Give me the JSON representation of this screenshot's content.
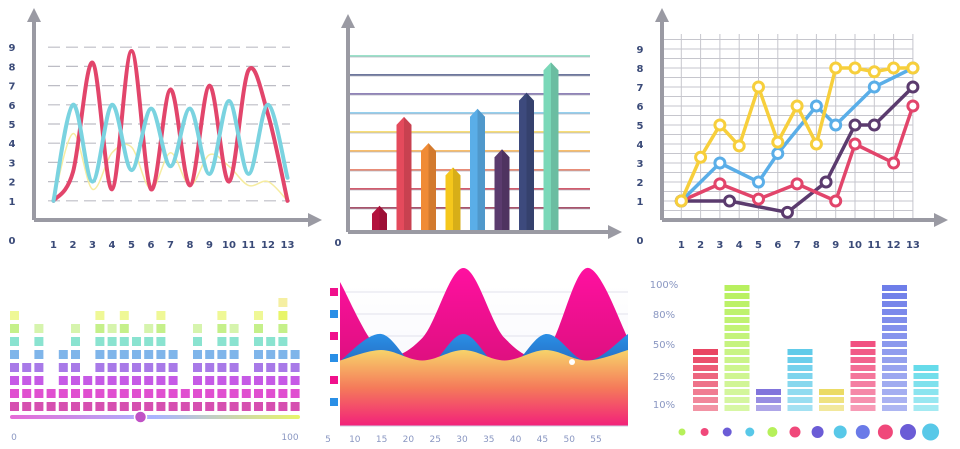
{
  "colors": {
    "axis": "#9a9aa3",
    "grid": "#bdbdc5",
    "red": "#e2456b",
    "teal": "#7ad3e0",
    "cream": "#f6eca0",
    "yellow": "#f7cf3c",
    "blue": "#5aaee8",
    "purple": "#5b3b6e",
    "pink": "#e8497a"
  },
  "chart_data": [
    {
      "type": "line",
      "x_ticks": [
        "1",
        "2",
        "3",
        "4",
        "5",
        "6",
        "7",
        "8",
        "9",
        "10",
        "11",
        "12",
        "13"
      ],
      "y_ticks": [
        "1",
        "2",
        "3",
        "4",
        "5",
        "6",
        "7",
        "8",
        "9"
      ],
      "origin_label": "0",
      "xlim": [
        0,
        13
      ],
      "ylim": [
        0,
        9.5
      ],
      "series": [
        {
          "color": "red",
          "x": [
            1,
            2,
            3,
            4,
            5,
            6,
            7,
            8,
            9,
            10,
            11,
            12,
            13
          ],
          "y": [
            1,
            2.5,
            8.2,
            1.6,
            8.8,
            1.6,
            6.8,
            1.8,
            7,
            2,
            7.8,
            5.5,
            1
          ]
        },
        {
          "color": "teal",
          "x": [
            1,
            2,
            3,
            4,
            5,
            6,
            7,
            8,
            9,
            10,
            11,
            12,
            13
          ],
          "y": [
            1,
            6,
            2,
            6,
            2.6,
            5.8,
            2.8,
            5.8,
            2.4,
            6.2,
            2.4,
            6,
            2.2
          ]
        },
        {
          "color": "cream",
          "x": [
            1,
            2,
            3,
            4,
            5,
            6,
            7,
            8,
            9,
            10,
            11,
            12,
            13
          ],
          "y": [
            1,
            4.5,
            1.6,
            3.5,
            3.8,
            1.6,
            3.5,
            1.8,
            3.4,
            2.8,
            1.8,
            2,
            1
          ]
        }
      ],
      "grid": "horizontal dashed"
    },
    {
      "type": "bar",
      "origin_label": "0",
      "values": [
        1.2,
        5.6,
        4.3,
        3.1,
        6,
        4,
        6.8,
        8.3
      ],
      "bar_colors": [
        "#b3123d",
        "#e44a5c",
        "#f08b35",
        "#f5c71c",
        "#5aaee8",
        "#5b3b6e",
        "#3d4a7d",
        "#7ad8b8"
      ],
      "line_colors": [
        "#8b1c3b",
        "#c2273f",
        "#e0664a",
        "#f6a83b",
        "#f5d34b",
        "#74c0e8",
        "#6b5aa0",
        "#3d4a7d",
        "#7ad8b8"
      ],
      "ylim": [
        0,
        10
      ],
      "grid": "horizontal"
    },
    {
      "type": "line",
      "x_ticks": [
        "1",
        "2",
        "3",
        "4",
        "5",
        "6",
        "7",
        "8",
        "9",
        "10",
        "11",
        "12",
        "13"
      ],
      "y_ticks": [
        "1",
        "2",
        "3",
        "4",
        "5",
        "6",
        "7",
        "8",
        "9"
      ],
      "origin_label": "0",
      "xlim": [
        0,
        13
      ],
      "ylim": [
        0,
        9.5
      ],
      "series": [
        {
          "color": "yellow",
          "x": [
            1,
            2,
            3,
            4,
            5,
            6,
            7,
            8,
            9,
            10,
            11,
            12,
            13
          ],
          "y": [
            1,
            3.3,
            5,
            3.9,
            7,
            4.1,
            6,
            4,
            8,
            8,
            7.8,
            8,
            8
          ]
        },
        {
          "color": "blue",
          "x": [
            1,
            3,
            5,
            6,
            8,
            9,
            11,
            13
          ],
          "y": [
            1,
            3,
            2,
            3.5,
            6,
            5,
            7,
            8
          ]
        },
        {
          "color": "red",
          "x": [
            1,
            3,
            5,
            7,
            9,
            10,
            12,
            13
          ],
          "y": [
            1,
            1.9,
            1.1,
            1.9,
            1,
            4,
            3,
            6
          ]
        },
        {
          "color": "purple",
          "x": [
            1,
            3.5,
            6.5,
            8.5,
            10,
            11,
            13
          ],
          "y": [
            1,
            1,
            0.4,
            2,
            5,
            5,
            7
          ]
        }
      ],
      "grid": "both"
    },
    {
      "type": "bar",
      "subtype": "equalizer",
      "levels": [
        8,
        4,
        7,
        2,
        5,
        7,
        3,
        8,
        7,
        8,
        6,
        7,
        8,
        5,
        2,
        7,
        5,
        8,
        7,
        3,
        8,
        6,
        9,
        5
      ],
      "slider": {
        "min_label": "0",
        "max_label": "100",
        "value": 45
      }
    },
    {
      "type": "area",
      "x_ticks": [
        "5",
        "10",
        "15",
        "20",
        "25",
        "30",
        "35",
        "40",
        "45",
        "50",
        "55"
      ],
      "series": [
        {
          "color": "#f0108c",
          "values": [
            8,
            3,
            4,
            9,
            4,
            3,
            9,
            4
          ]
        },
        {
          "color": "#1b63c9",
          "values": [
            3,
            6,
            2,
            6,
            2,
            6,
            3,
            6
          ]
        },
        {
          "color": "#f3a050",
          "values": [
            2.5,
            4,
            2.5,
            4,
            2.5,
            4,
            2.5,
            4
          ]
        }
      ]
    },
    {
      "type": "bar",
      "subtype": "segmented",
      "y_ticks": [
        "10%",
        "25%",
        "50%",
        "80%",
        "100%"
      ],
      "values": [
        50,
        100,
        20,
        50,
        20,
        55,
        100,
        35
      ],
      "bar_colors": [
        "#e83a5a",
        "#b6f05a",
        "#6b5cd6",
        "#58c8e8",
        "#e8d54a",
        "#f0487a",
        "#6a7ae8",
        "#5ad8e8"
      ],
      "dots": [
        4,
        5,
        6,
        6,
        7,
        8,
        9,
        10,
        11,
        12,
        13,
        14
      ]
    }
  ]
}
